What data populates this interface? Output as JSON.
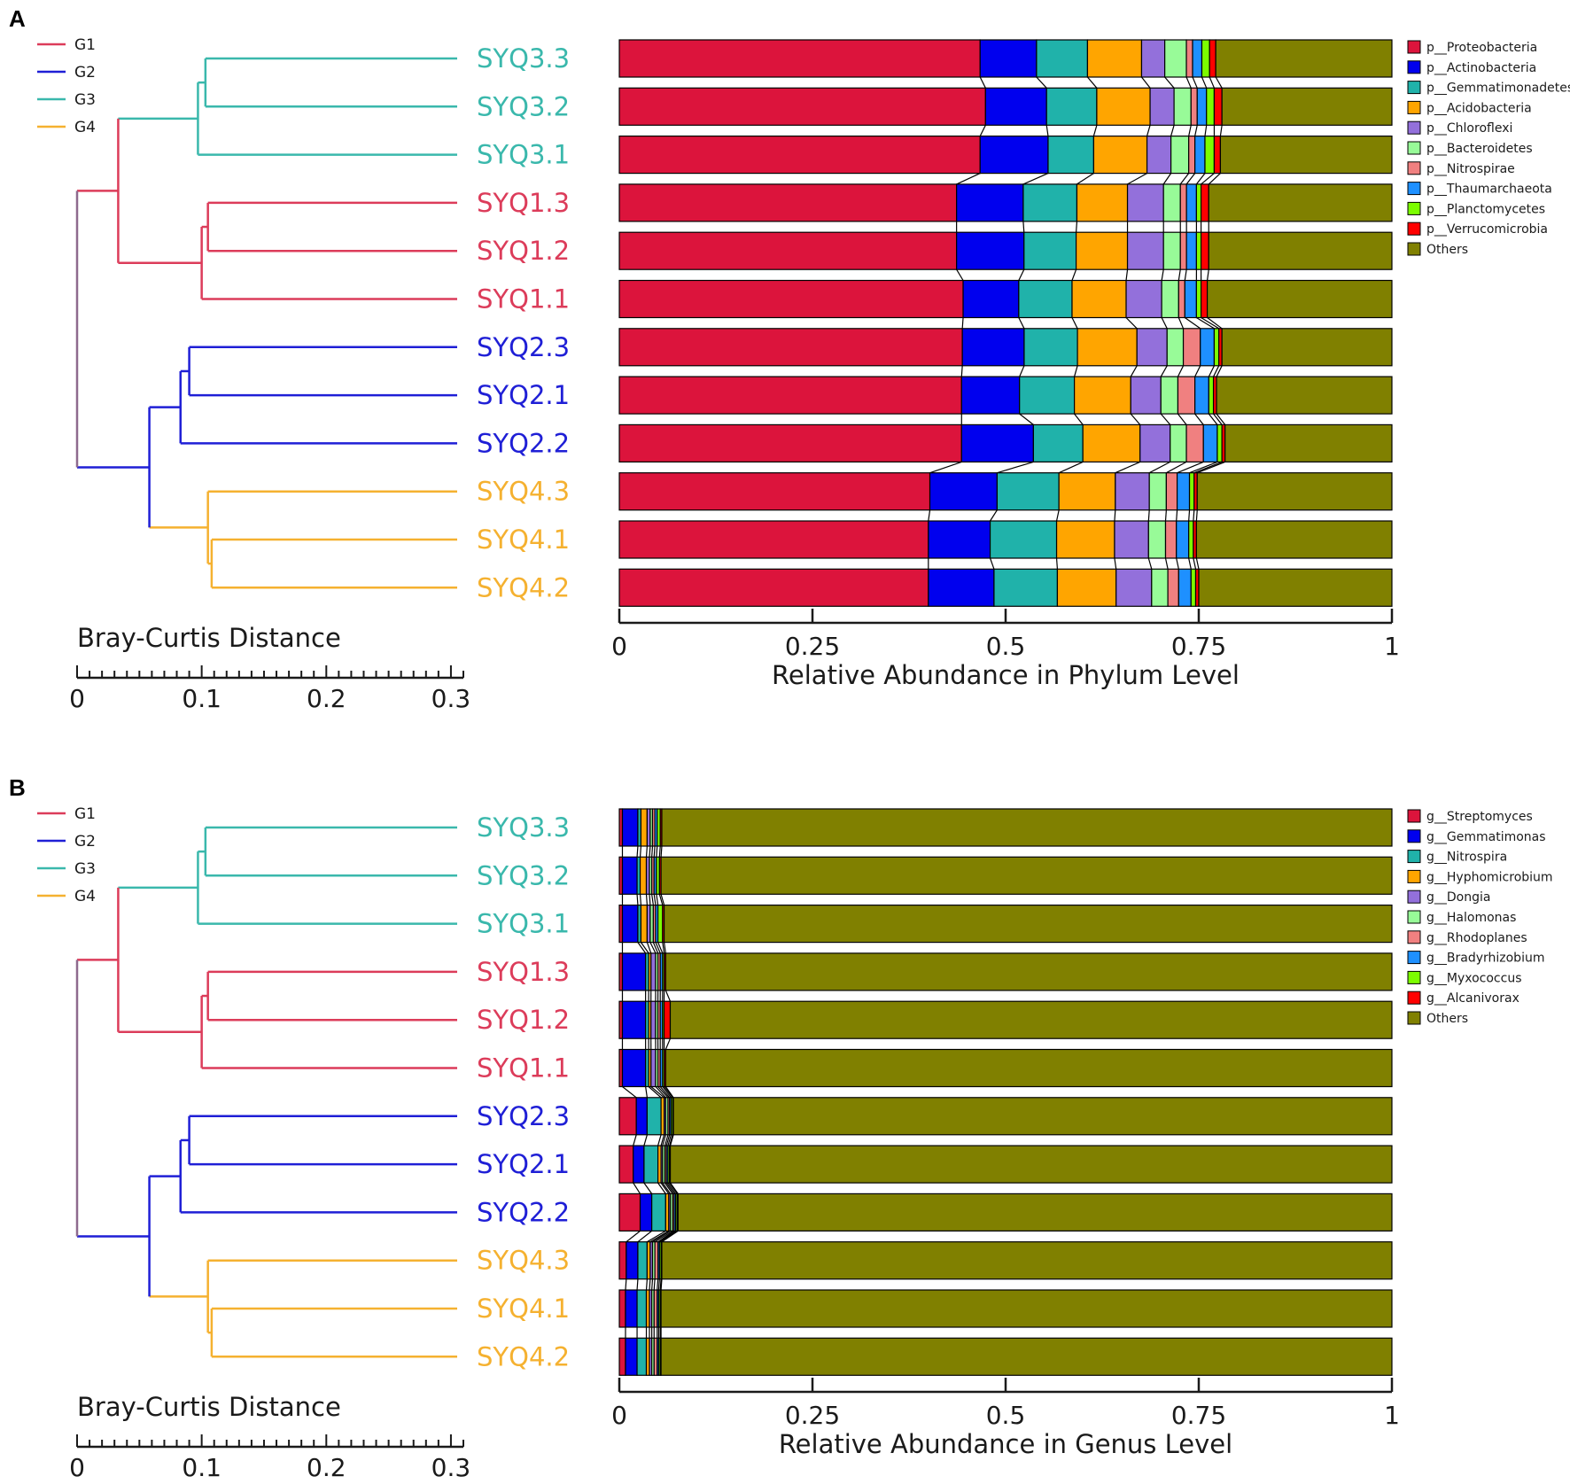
{
  "panels": [
    {
      "letter": "A",
      "x_title": "Relative Abundance in Phylum Level",
      "taxa": [
        "p__Proteobacteria",
        "p__Actinobacteria",
        "p__Gemmatimonadetes",
        "p__Acidobacteria",
        "p__Chloroflexi",
        "p__Bacteroidetes",
        "p__Nitrospirae",
        "p__Thaumarchaeota",
        "p__Planctomycetes",
        "p__Verrucomicrobia",
        "Others"
      ]
    },
    {
      "letter": "B",
      "x_title": "Relative Abundance in Genus Level",
      "taxa": [
        "g__Streptomyces",
        "g__Gemmatimonas",
        "g__Nitrospira",
        "g__Hyphomicrobium",
        "g__Dongia",
        "g__Halomonas",
        "g__Rhodoplanes",
        "g__Bradyrhizobium",
        "g__Myxococcus",
        "g__Alcanivorax",
        "Others"
      ]
    }
  ],
  "taxa_colors": [
    "#dc143c",
    "#0000ee",
    "#20b2aa",
    "#ffa500",
    "#9370db",
    "#98fb98",
    "#f08080",
    "#1e90ff",
    "#7cfc00",
    "#ff0000",
    "#808000"
  ],
  "groups": [
    {
      "name": "G1",
      "color": "#dc3c5a"
    },
    {
      "name": "G2",
      "color": "#1f1fd6"
    },
    {
      "name": "G3",
      "color": "#3ab8ac"
    },
    {
      "name": "G4",
      "color": "#f5b130"
    }
  ],
  "root_color": "#8e6a8e",
  "samples": [
    {
      "label": "SYQ3.3",
      "group": 2
    },
    {
      "label": "SYQ3.2",
      "group": 2
    },
    {
      "label": "SYQ3.1",
      "group": 2
    },
    {
      "label": "SYQ1.3",
      "group": 0
    },
    {
      "label": "SYQ1.2",
      "group": 0
    },
    {
      "label": "SYQ1.1",
      "group": 0
    },
    {
      "label": "SYQ2.3",
      "group": 1
    },
    {
      "label": "SYQ2.1",
      "group": 1
    },
    {
      "label": "SYQ2.2",
      "group": 1
    },
    {
      "label": "SYQ4.3",
      "group": 3
    },
    {
      "label": "SYQ4.1",
      "group": 3
    },
    {
      "label": "SYQ4.2",
      "group": 3
    }
  ],
  "dendrogram": {
    "title": "Bray-Curtis Distance",
    "scale_ticks": [
      "0",
      "0.1",
      "0.2",
      "0.3"
    ],
    "axis_max": 0.31,
    "merges": [
      {
        "a": "SYQ3.3",
        "b": "SYQ3.2",
        "height": 0.103,
        "id": "n1",
        "group": 2
      },
      {
        "a": "n1",
        "b": "SYQ3.1",
        "height": 0.097,
        "id": "n2",
        "group": 2
      },
      {
        "a": "SYQ1.3",
        "b": "SYQ1.2",
        "height": 0.105,
        "id": "n3",
        "group": 0
      },
      {
        "a": "n3",
        "b": "SYQ1.1",
        "height": 0.1,
        "id": "n4",
        "group": 0
      },
      {
        "a": "n2",
        "b": "n4",
        "height": 0.033,
        "id": "n5",
        "group": 0
      },
      {
        "a": "SYQ2.3",
        "b": "SYQ2.1",
        "height": 0.09,
        "id": "n6",
        "group": 1
      },
      {
        "a": "n6",
        "b": "SYQ2.2",
        "height": 0.083,
        "id": "n7",
        "group": 1
      },
      {
        "a": "SYQ4.1",
        "b": "SYQ4.2",
        "height": 0.108,
        "id": "n8",
        "group": 3
      },
      {
        "a": "SYQ4.3",
        "b": "n8",
        "height": 0.105,
        "id": "n9",
        "group": 3
      },
      {
        "a": "n7",
        "b": "n9",
        "height": 0.058,
        "id": "n10",
        "group": 1
      },
      {
        "a": "n5",
        "b": "n10",
        "height": 0.0,
        "id": "root",
        "group": -1
      }
    ]
  },
  "chart_data": [
    {
      "type": "bar",
      "orientation": "horizontal",
      "stacked": true,
      "title": "",
      "xlabel": "Relative Abundance in Phylum Level",
      "xlim": [
        0,
        1
      ],
      "xticks": [
        "0",
        "0.25",
        "0.5",
        "0.75",
        "1"
      ],
      "categories": [
        "SYQ3.3",
        "SYQ3.2",
        "SYQ3.1",
        "SYQ1.3",
        "SYQ1.2",
        "SYQ1.1",
        "SYQ2.3",
        "SYQ2.1",
        "SYQ2.2",
        "SYQ4.3",
        "SYQ4.1",
        "SYQ4.2"
      ],
      "series": [
        {
          "name": "p__Proteobacteria",
          "values": [
            0.467,
            0.474,
            0.467,
            0.44,
            0.44,
            0.445,
            0.444,
            0.443,
            0.443,
            0.402,
            0.4,
            0.4
          ]
        },
        {
          "name": "p__Actinobacteria",
          "values": [
            0.073,
            0.079,
            0.088,
            0.087,
            0.088,
            0.072,
            0.08,
            0.075,
            0.093,
            0.087,
            0.08,
            0.085
          ]
        },
        {
          "name": "p__Gemmatimonadetes",
          "values": [
            0.066,
            0.065,
            0.059,
            0.07,
            0.068,
            0.069,
            0.069,
            0.071,
            0.064,
            0.08,
            0.086,
            0.082
          ]
        },
        {
          "name": "p__Acidobacteria",
          "values": [
            0.07,
            0.069,
            0.069,
            0.066,
            0.067,
            0.07,
            0.077,
            0.073,
            0.074,
            0.073,
            0.075,
            0.076
          ]
        },
        {
          "name": "p__Chloroflexi",
          "values": [
            0.03,
            0.031,
            0.031,
            0.047,
            0.047,
            0.046,
            0.039,
            0.039,
            0.039,
            0.044,
            0.044,
            0.046
          ]
        },
        {
          "name": "p__Bacteroidetes",
          "values": [
            0.028,
            0.022,
            0.023,
            0.022,
            0.022,
            0.022,
            0.021,
            0.022,
            0.021,
            0.022,
            0.022,
            0.021
          ]
        },
        {
          "name": "p__Nitrospirae",
          "values": [
            0.008,
            0.008,
            0.008,
            0.008,
            0.008,
            0.008,
            0.022,
            0.022,
            0.022,
            0.014,
            0.014,
            0.014
          ]
        },
        {
          "name": "p__Thaumarchaeota",
          "values": [
            0.012,
            0.012,
            0.013,
            0.013,
            0.013,
            0.015,
            0.018,
            0.018,
            0.018,
            0.016,
            0.016,
            0.016
          ]
        },
        {
          "name": "p__Planctomycetes",
          "values": [
            0.01,
            0.01,
            0.012,
            0.006,
            0.006,
            0.006,
            0.006,
            0.006,
            0.006,
            0.006,
            0.006,
            0.006
          ]
        },
        {
          "name": "p__Verrucomicrobia",
          "values": [
            0.008,
            0.01,
            0.008,
            0.01,
            0.01,
            0.008,
            0.004,
            0.004,
            0.004,
            0.004,
            0.004,
            0.004
          ]
        },
        {
          "name": "Others",
          "values": [
            0.228,
            0.22,
            0.222,
            0.239,
            0.239,
            0.239,
            0.22,
            0.227,
            0.216,
            0.252,
            0.253,
            0.25
          ]
        }
      ]
    },
    {
      "type": "bar",
      "orientation": "horizontal",
      "stacked": true,
      "title": "",
      "xlabel": "Relative Abundance in Genus Level",
      "xlim": [
        0,
        1
      ],
      "xticks": [
        "0",
        "0.25",
        "0.5",
        "0.75",
        "1"
      ],
      "categories": [
        "SYQ3.3",
        "SYQ3.2",
        "SYQ3.1",
        "SYQ1.3",
        "SYQ1.2",
        "SYQ1.1",
        "SYQ2.3",
        "SYQ2.1",
        "SYQ2.2",
        "SYQ4.3",
        "SYQ4.1",
        "SYQ4.2"
      ],
      "series": [
        {
          "name": "g__Streptomyces",
          "values": [
            0.004,
            0.004,
            0.004,
            0.004,
            0.004,
            0.004,
            0.022,
            0.018,
            0.027,
            0.009,
            0.008,
            0.008
          ]
        },
        {
          "name": "g__Gemmatimonas",
          "values": [
            0.02,
            0.019,
            0.02,
            0.03,
            0.03,
            0.03,
            0.014,
            0.014,
            0.015,
            0.015,
            0.015,
            0.015
          ]
        },
        {
          "name": "g__Nitrospira",
          "values": [
            0.004,
            0.004,
            0.004,
            0.004,
            0.004,
            0.004,
            0.018,
            0.018,
            0.018,
            0.012,
            0.012,
            0.012
          ]
        },
        {
          "name": "g__Hyphomicrobium",
          "values": [
            0.008,
            0.008,
            0.008,
            0.003,
            0.003,
            0.003,
            0.004,
            0.004,
            0.004,
            0.004,
            0.004,
            0.004
          ]
        },
        {
          "name": "g__Dongia",
          "values": [
            0.004,
            0.004,
            0.004,
            0.006,
            0.006,
            0.006,
            0.002,
            0.002,
            0.002,
            0.003,
            0.003,
            0.003
          ]
        },
        {
          "name": "g__Halomonas",
          "values": [
            0.003,
            0.003,
            0.004,
            0.003,
            0.003,
            0.003,
            0.003,
            0.003,
            0.003,
            0.003,
            0.003,
            0.003
          ]
        },
        {
          "name": "g__Rhodoplanes",
          "values": [
            0.003,
            0.003,
            0.003,
            0.003,
            0.003,
            0.003,
            0.002,
            0.002,
            0.002,
            0.004,
            0.004,
            0.004
          ]
        },
        {
          "name": "g__Bradyrhizobium",
          "values": [
            0.003,
            0.003,
            0.003,
            0.003,
            0.003,
            0.003,
            0.002,
            0.002,
            0.002,
            0.002,
            0.002,
            0.002
          ]
        },
        {
          "name": "g__Myxococcus",
          "values": [
            0.004,
            0.004,
            0.006,
            0.002,
            0.002,
            0.002,
            0.002,
            0.002,
            0.002,
            0.002,
            0.002,
            0.002
          ]
        },
        {
          "name": "g__Alcanivorax",
          "values": [
            0.002,
            0.002,
            0.002,
            0.002,
            0.008,
            0.002,
            0.001,
            0.001,
            0.001,
            0.001,
            0.001,
            0.001
          ]
        },
        {
          "name": "Others",
          "values": [
            0.945,
            0.946,
            0.942,
            0.94,
            0.935,
            0.94,
            0.93,
            0.934,
            0.924,
            0.945,
            0.946,
            0.946
          ]
        }
      ]
    }
  ]
}
